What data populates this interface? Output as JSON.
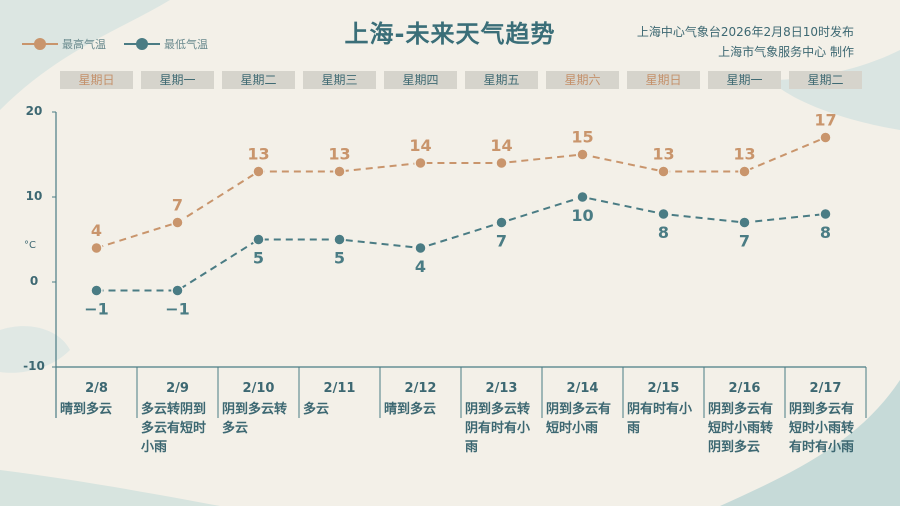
{
  "title": "上海-未来天气趋势",
  "issuer_line1": "上海中心气象台2026年2月8日10时发布",
  "issuer_line2": "上海市气象服务中心  制作",
  "colors": {
    "high": "#c9956c",
    "low": "#4a7c84",
    "weekday_text": "#3f6a73",
    "weekend_text": "#c4906a"
  },
  "chart_data": {
    "type": "line",
    "ylim": [
      -10,
      20
    ],
    "yticks": [
      "20",
      "10",
      "0",
      "-10"
    ],
    "ylabel": "°C",
    "legend": "top-left",
    "categories": [
      "2/8",
      "2/9",
      "2/10",
      "2/11",
      "2/12",
      "2/13",
      "2/14",
      "2/15",
      "2/16",
      "2/17"
    ],
    "weekdays": [
      "星期日",
      "星期一",
      "星期二",
      "星期三",
      "星期四",
      "星期五",
      "星期六",
      "星期日",
      "星期一",
      "星期二"
    ],
    "weekend_flags": [
      true,
      false,
      false,
      false,
      false,
      false,
      true,
      true,
      false,
      false
    ],
    "weather": [
      "晴到多云",
      "多云转阴到多云有短时小雨",
      "阴到多云转多云",
      "多云",
      "晴到多云",
      "阴到多云转阴有时有小雨",
      "阴到多云有短时小雨",
      "阴有时有小雨",
      "阴到多云有短时小雨转阴到多云",
      "阴到多云有短时小雨转有时有小雨"
    ],
    "series": [
      {
        "name": "最高气温",
        "values": [
          4,
          7,
          13,
          13,
          14,
          14,
          15,
          13,
          13,
          17
        ]
      },
      {
        "name": "最低气温",
        "values": [
          -1,
          -1,
          5,
          5,
          4,
          7,
          10,
          8,
          7,
          8
        ]
      }
    ]
  }
}
